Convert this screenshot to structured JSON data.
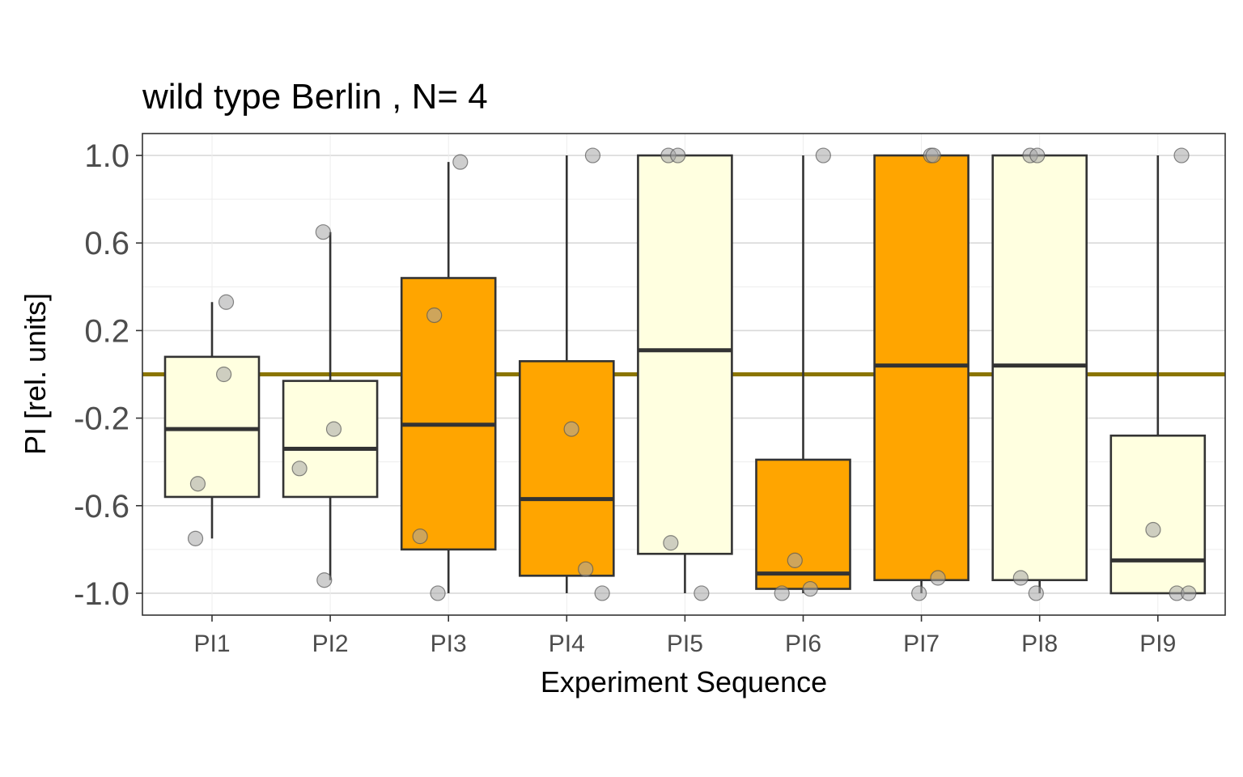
{
  "chart_data": {
    "type": "box",
    "title": "wild type Berlin , N= 4",
    "xlabel": "Experiment Sequence",
    "ylabel": "PI [rel. units]",
    "ylim": [
      -1.1,
      1.1
    ],
    "yticks": [
      1.0,
      0.6,
      0.2,
      -0.2,
      -0.6,
      -1.0
    ],
    "ytick_labels": [
      "1.0",
      "0.6",
      "0.2",
      "-0.2",
      "-0.6",
      "-1.0"
    ],
    "categories": [
      "PI1",
      "PI2",
      "PI3",
      "PI4",
      "PI5",
      "PI6",
      "PI7",
      "PI8",
      "PI9"
    ],
    "reference_line": 0.0,
    "grid": true,
    "boxes": [
      {
        "category": "PI1",
        "fill": "light",
        "whisker_low": -0.75,
        "q1": -0.56,
        "median": -0.25,
        "q3": 0.08,
        "whisker_high": 0.33
      },
      {
        "category": "PI2",
        "fill": "light",
        "whisker_low": -0.94,
        "q1": -0.56,
        "median": -0.34,
        "q3": -0.03,
        "whisker_high": 0.65
      },
      {
        "category": "PI3",
        "fill": "dark",
        "whisker_low": -1.0,
        "q1": -0.8,
        "median": -0.23,
        "q3": 0.44,
        "whisker_high": 0.97
      },
      {
        "category": "PI4",
        "fill": "dark",
        "whisker_low": -1.0,
        "q1": -0.92,
        "median": -0.57,
        "q3": 0.06,
        "whisker_high": 1.0
      },
      {
        "category": "PI5",
        "fill": "light",
        "whisker_low": -1.0,
        "q1": -0.82,
        "median": 0.11,
        "q3": 1.0,
        "whisker_high": 1.0
      },
      {
        "category": "PI6",
        "fill": "dark",
        "whisker_low": -1.0,
        "q1": -0.98,
        "median": -0.91,
        "q3": -0.39,
        "whisker_high": 1.0
      },
      {
        "category": "PI7",
        "fill": "dark",
        "whisker_low": -1.0,
        "q1": -0.94,
        "median": 0.04,
        "q3": 1.0,
        "whisker_high": 1.0
      },
      {
        "category": "PI8",
        "fill": "light",
        "whisker_low": -1.0,
        "q1": -0.94,
        "median": 0.04,
        "q3": 1.0,
        "whisker_high": 1.0
      },
      {
        "category": "PI9",
        "fill": "light",
        "whisker_low": -1.0,
        "q1": -1.0,
        "median": -0.85,
        "q3": -0.28,
        "whisker_high": 1.0
      }
    ],
    "points": [
      {
        "category": "PI1",
        "values": [
          0.33,
          0.0,
          -0.5,
          -0.75
        ],
        "jitter": [
          0.12,
          0.1,
          -0.12,
          -0.14
        ]
      },
      {
        "category": "PI2",
        "values": [
          0.65,
          -0.25,
          -0.43,
          -0.94
        ],
        "jitter": [
          -0.06,
          0.03,
          -0.26,
          -0.05
        ]
      },
      {
        "category": "PI3",
        "values": [
          0.97,
          0.27,
          -0.74,
          -1.0
        ],
        "jitter": [
          0.1,
          -0.12,
          -0.24,
          -0.09
        ]
      },
      {
        "category": "PI4",
        "values": [
          1.0,
          -0.25,
          -0.89,
          -1.0
        ],
        "jitter": [
          0.22,
          0.04,
          0.16,
          0.3
        ]
      },
      {
        "category": "PI5",
        "values": [
          1.0,
          1.0,
          -0.77,
          -1.0
        ],
        "jitter": [
          -0.14,
          -0.06,
          -0.12,
          0.14
        ]
      },
      {
        "category": "PI6",
        "values": [
          1.0,
          -0.85,
          -0.98,
          -1.0
        ],
        "jitter": [
          0.17,
          -0.07,
          0.06,
          -0.18
        ]
      },
      {
        "category": "PI7",
        "values": [
          1.0,
          1.0,
          -0.93,
          -1.0
        ],
        "jitter": [
          0.08,
          0.1,
          0.14,
          -0.02
        ]
      },
      {
        "category": "PI8",
        "values": [
          1.0,
          1.0,
          -0.93,
          -1.0
        ],
        "jitter": [
          -0.08,
          -0.02,
          -0.16,
          -0.03
        ]
      },
      {
        "category": "PI9",
        "values": [
          1.0,
          -0.71,
          -1.0,
          -1.0
        ],
        "jitter": [
          0.2,
          -0.04,
          0.16,
          0.26
        ]
      }
    ],
    "colors": {
      "box_light": "#ffffe0",
      "box_dark": "#ffa500",
      "box_stroke": "#333333",
      "reference_line": "#8b7500",
      "grid": "#d9d9d9",
      "point_fill": "#a6a6a6",
      "point_stroke": "#555555",
      "panel_border": "#333333"
    }
  }
}
